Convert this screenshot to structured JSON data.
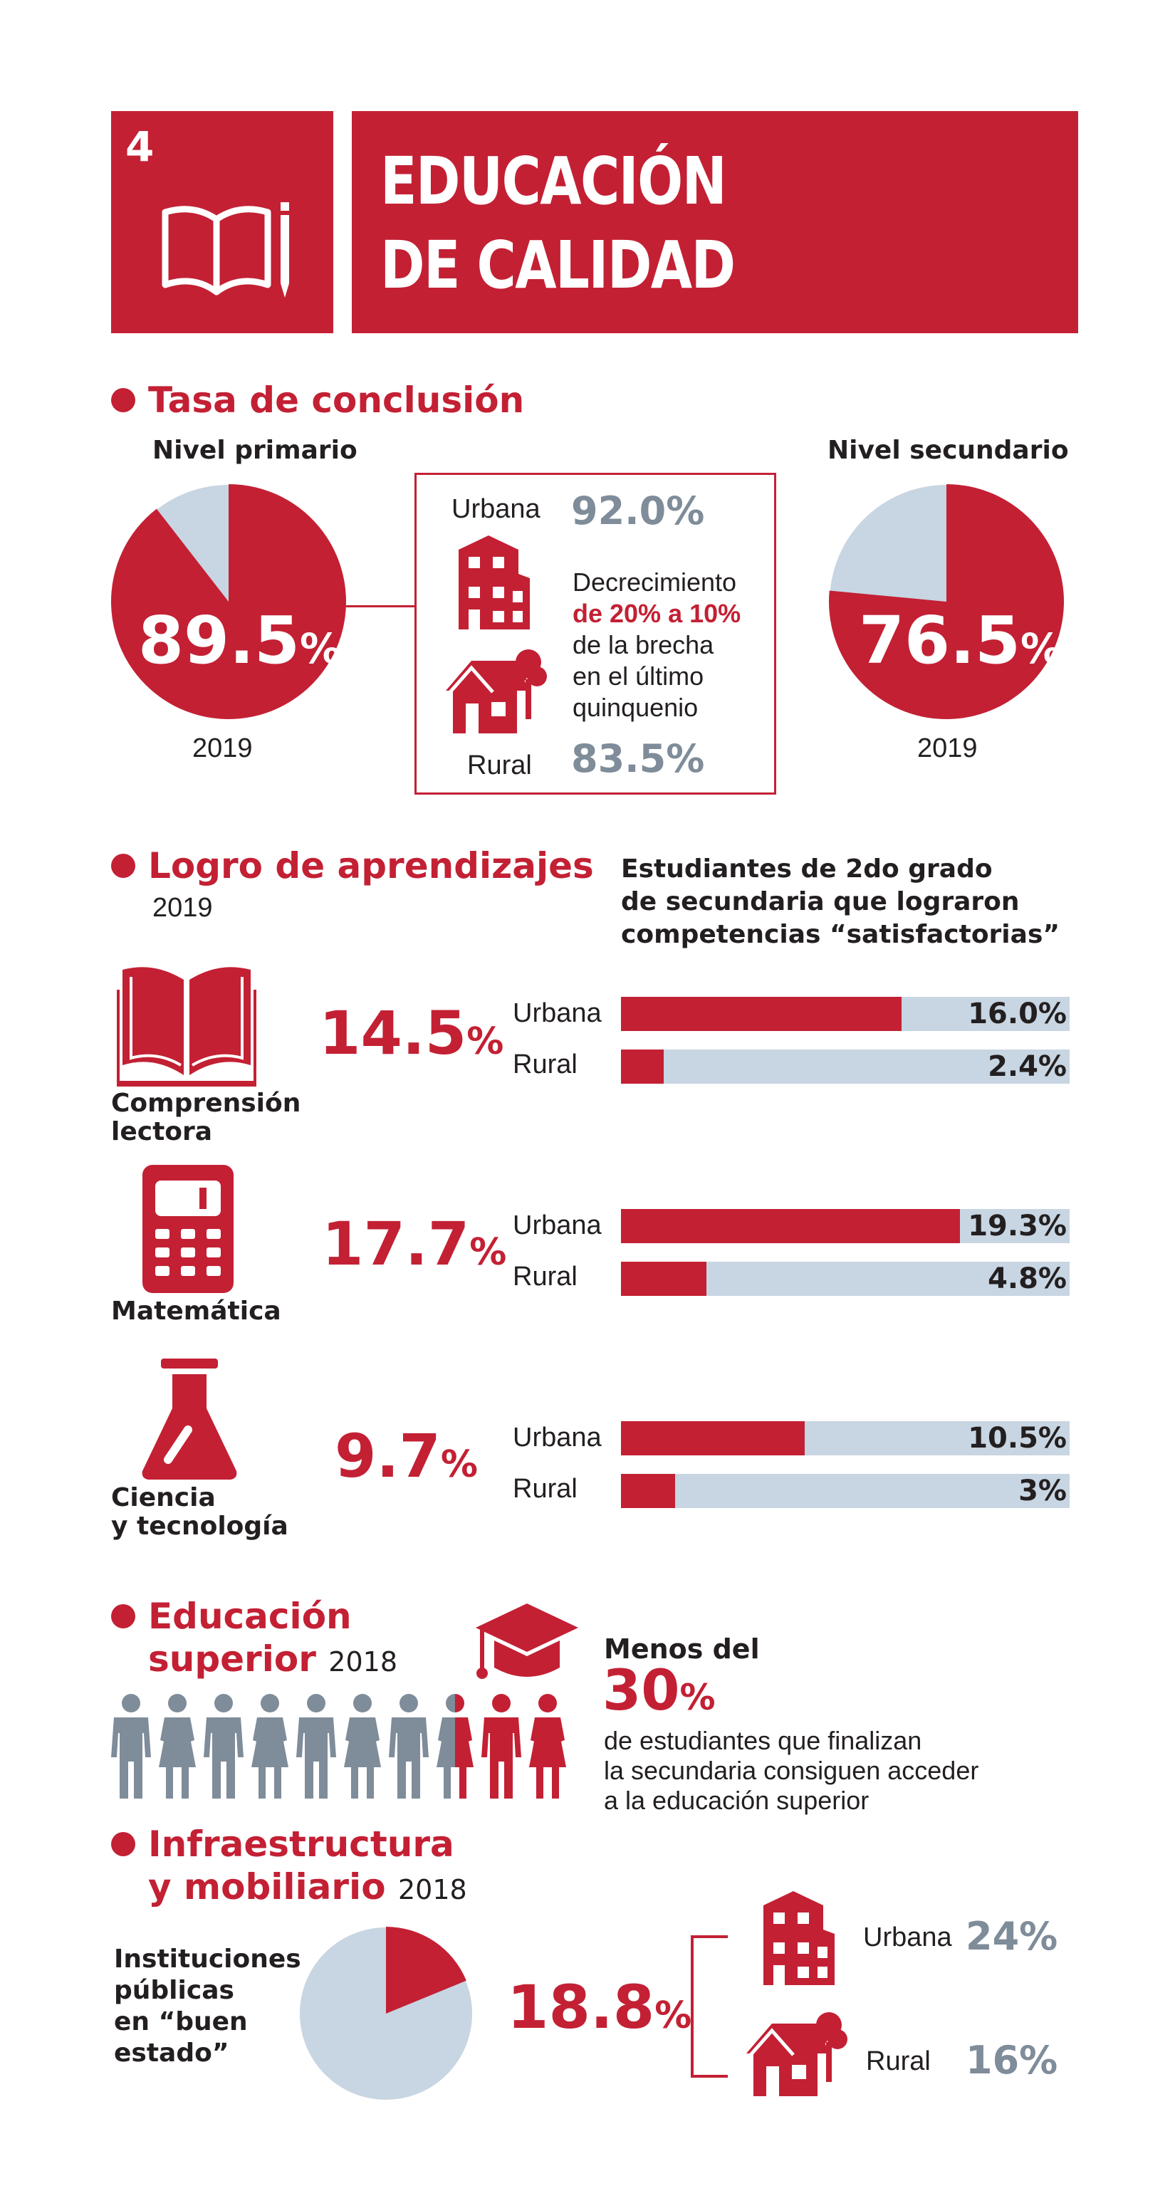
{
  "header": {
    "number": "4",
    "title_line1": "EDUCACIÓN",
    "title_line2": "DE CALIDAD"
  },
  "colors": {
    "accent": "#c32034",
    "light": "#c8d5e2",
    "grey_text": "#7f8c99",
    "people_grey": "#7f8c99"
  },
  "conclusion": {
    "title": "Tasa de conclusión",
    "primary": {
      "label": "Nivel primario",
      "value": "89.5",
      "pct": "%",
      "year": "2019",
      "fraction": 0.895
    },
    "secondary": {
      "label": "Nivel secundario",
      "value": "76.5",
      "pct": "%",
      "year": "2019",
      "fraction": 0.765
    },
    "urban_label": "Urbana",
    "urban_value": "92.0%",
    "rural_label": "Rural",
    "rural_value": "83.5%",
    "note_line1": "Decrecimiento",
    "note_line2": "de 20% a 10%",
    "note_line3": "de la brecha",
    "note_line4": "en el último",
    "note_line5": "quinquenio"
  },
  "learning": {
    "title": "Logro de aprendizajes",
    "year": "2019",
    "subtitle_line1": "Estudiantes de 2do grado",
    "subtitle_line2": "de secundaria que lograron",
    "subtitle_line3": "competencias “satisfactorias”",
    "subjects": [
      {
        "name_line1": "Comprensión",
        "name_line2": "lectora",
        "value": "14.5",
        "pct": "%",
        "urban_label": "Urbana",
        "urban_value": "16.0%",
        "urban_fill": 0.625,
        "rural_label": "Rural",
        "rural_value": "2.4%",
        "rural_fill": 0.095
      },
      {
        "name_line1": "Matemática",
        "name_line2": "",
        "value": "17.7",
        "pct": "%",
        "urban_label": "Urbana",
        "urban_value": "19.3%",
        "urban_fill": 0.755,
        "rural_label": "Rural",
        "rural_value": "4.8%",
        "rural_fill": 0.19
      },
      {
        "name_line1": "Ciencia",
        "name_line2": "y tecnología",
        "value": "9.7",
        "pct": "%",
        "urban_label": "Urbana",
        "urban_value": "10.5%",
        "urban_fill": 0.41,
        "rural_label": "Rural",
        "rural_value": "3%",
        "rural_fill": 0.12
      }
    ]
  },
  "higher_ed": {
    "title_line1": "Educación",
    "title_line2": "superior",
    "year": "2018",
    "lead": "Menos del",
    "value": "30",
    "pct": "%",
    "text_line1": "de estudiantes que finalizan",
    "text_line2": "la secundaria consiguen acceder",
    "text_line3": "a la educación superior"
  },
  "infra": {
    "title_line1": "Infraestructura",
    "title_line2": "y mobiliario",
    "year": "2018",
    "label_line1": "Instituciones",
    "label_line2": "públicas",
    "label_line3": "en “buen",
    "label_line4": "estado”",
    "value": "18.8",
    "pct": "%",
    "fraction": 0.188,
    "urban_label": "Urbana",
    "urban_value": "24%",
    "rural_label": "Rural",
    "rural_value": "16%"
  }
}
